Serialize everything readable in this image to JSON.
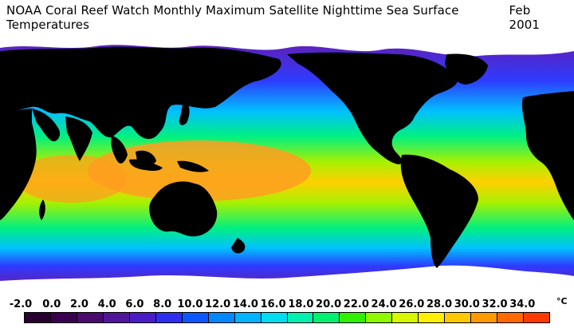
{
  "header": {
    "title": "NOAA Coral Reef Watch Monthly Maximum Satellite Nighttime Sea Surface Temperatures",
    "date": "Feb 2001"
  },
  "legend": {
    "unit": "°C",
    "ticks": [
      "-2.0",
      "0.0",
      "2.0",
      "4.0",
      "6.0",
      "8.0",
      "10.0",
      "12.0",
      "14.0",
      "16.0",
      "18.0",
      "20.0",
      "22.0",
      "24.0",
      "26.0",
      "28.0",
      "30.0",
      "32.0",
      "34.0"
    ],
    "colors": [
      "#2a0030",
      "#3c0050",
      "#4a0a6e",
      "#51159a",
      "#4a1cc6",
      "#2f2ef0",
      "#0c57ff",
      "#0088ff",
      "#00b4ff",
      "#00dcf0",
      "#00f0b0",
      "#00f070",
      "#30f000",
      "#90f800",
      "#d8f800",
      "#fff000",
      "#ffc800",
      "#ff9a00",
      "#ff6a00",
      "#ff3a00"
    ]
  },
  "map_colors": {
    "land": "#000000",
    "ice": "#ffffff",
    "polar": "#6a1aa8",
    "cold": "#2e3bff",
    "cool": "#00c0ff",
    "mild": "#00f080",
    "temperate": "#a8f000",
    "warm": "#ffd000",
    "hot": "#ff9d20"
  }
}
